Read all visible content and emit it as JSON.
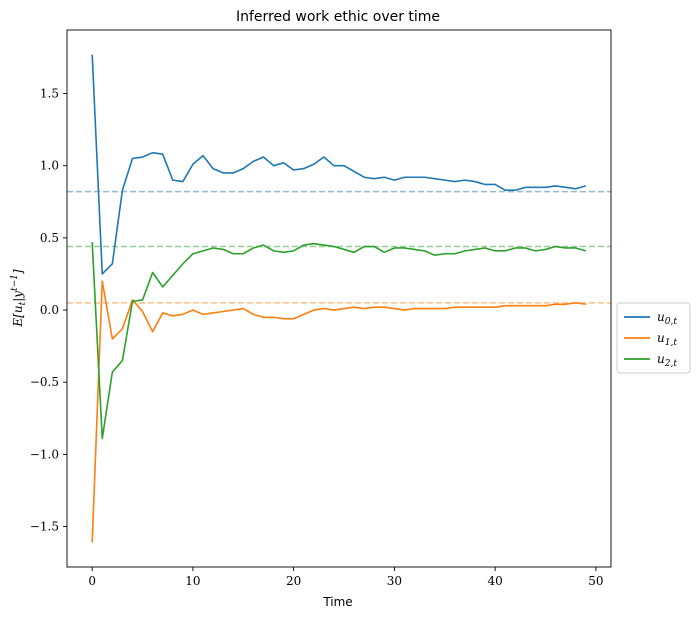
{
  "chart_data": {
    "type": "line",
    "title": "Inferred work ethic over time",
    "xlabel": "Time",
    "ylabel": "E[u_t|y^{t-1}]",
    "xlim": [
      -2.5,
      51.5
    ],
    "ylim": [
      -1.78,
      1.94
    ],
    "xticks": [
      0,
      10,
      20,
      30,
      40,
      50
    ],
    "yticks": [
      -1.5,
      -1.0,
      -0.5,
      0.0,
      0.5,
      1.0,
      1.5
    ],
    "xtick_labels": [
      "0",
      "10",
      "20",
      "30",
      "40",
      "50"
    ],
    "ytick_labels": [
      "−1.5",
      "−1.0",
      "−0.5",
      "0.0",
      "0.5",
      "1.0",
      "1.5"
    ],
    "legend_position": "right-center",
    "grid": false,
    "series": [
      {
        "name": "u",
        "subscript": "0,t",
        "color": "#1f77b4",
        "reference": 0.82,
        "values": [
          1.77,
          0.25,
          0.32,
          0.83,
          1.05,
          1.06,
          1.09,
          1.08,
          0.9,
          0.89,
          1.01,
          1.07,
          0.98,
          0.95,
          0.95,
          0.98,
          1.03,
          1.06,
          1.0,
          1.02,
          0.97,
          0.98,
          1.01,
          1.06,
          1.0,
          1.0,
          0.96,
          0.92,
          0.91,
          0.92,
          0.9,
          0.92,
          0.92,
          0.92,
          0.91,
          0.9,
          0.89,
          0.9,
          0.89,
          0.87,
          0.87,
          0.83,
          0.83,
          0.85,
          0.85,
          0.85,
          0.86,
          0.85,
          0.84,
          0.86
        ]
      },
      {
        "name": "u",
        "subscript": "1,t",
        "color": "#ff7f0e",
        "reference": 0.05,
        "values": [
          -1.61,
          0.2,
          -0.2,
          -0.13,
          0.07,
          -0.01,
          -0.15,
          -0.02,
          -0.04,
          -0.03,
          0.0,
          -0.03,
          -0.02,
          -0.01,
          0.0,
          0.01,
          -0.03,
          -0.05,
          -0.05,
          -0.06,
          -0.06,
          -0.03,
          0.0,
          0.01,
          0.0,
          0.01,
          0.02,
          0.01,
          0.02,
          0.02,
          0.01,
          0.0,
          0.01,
          0.01,
          0.01,
          0.01,
          0.02,
          0.02,
          0.02,
          0.02,
          0.02,
          0.03,
          0.03,
          0.03,
          0.03,
          0.03,
          0.04,
          0.04,
          0.05,
          0.04
        ]
      },
      {
        "name": "u",
        "subscript": "2,t",
        "color": "#2ca02c",
        "reference": 0.44,
        "values": [
          0.47,
          -0.89,
          -0.43,
          -0.35,
          0.06,
          0.07,
          0.26,
          0.16,
          0.24,
          0.32,
          0.39,
          0.41,
          0.43,
          0.42,
          0.39,
          0.39,
          0.43,
          0.45,
          0.41,
          0.4,
          0.41,
          0.45,
          0.46,
          0.45,
          0.44,
          0.42,
          0.4,
          0.44,
          0.44,
          0.4,
          0.43,
          0.43,
          0.42,
          0.41,
          0.38,
          0.39,
          0.39,
          0.41,
          0.42,
          0.43,
          0.41,
          0.41,
          0.43,
          0.43,
          0.41,
          0.42,
          0.44,
          0.43,
          0.43,
          0.41
        ]
      }
    ]
  }
}
